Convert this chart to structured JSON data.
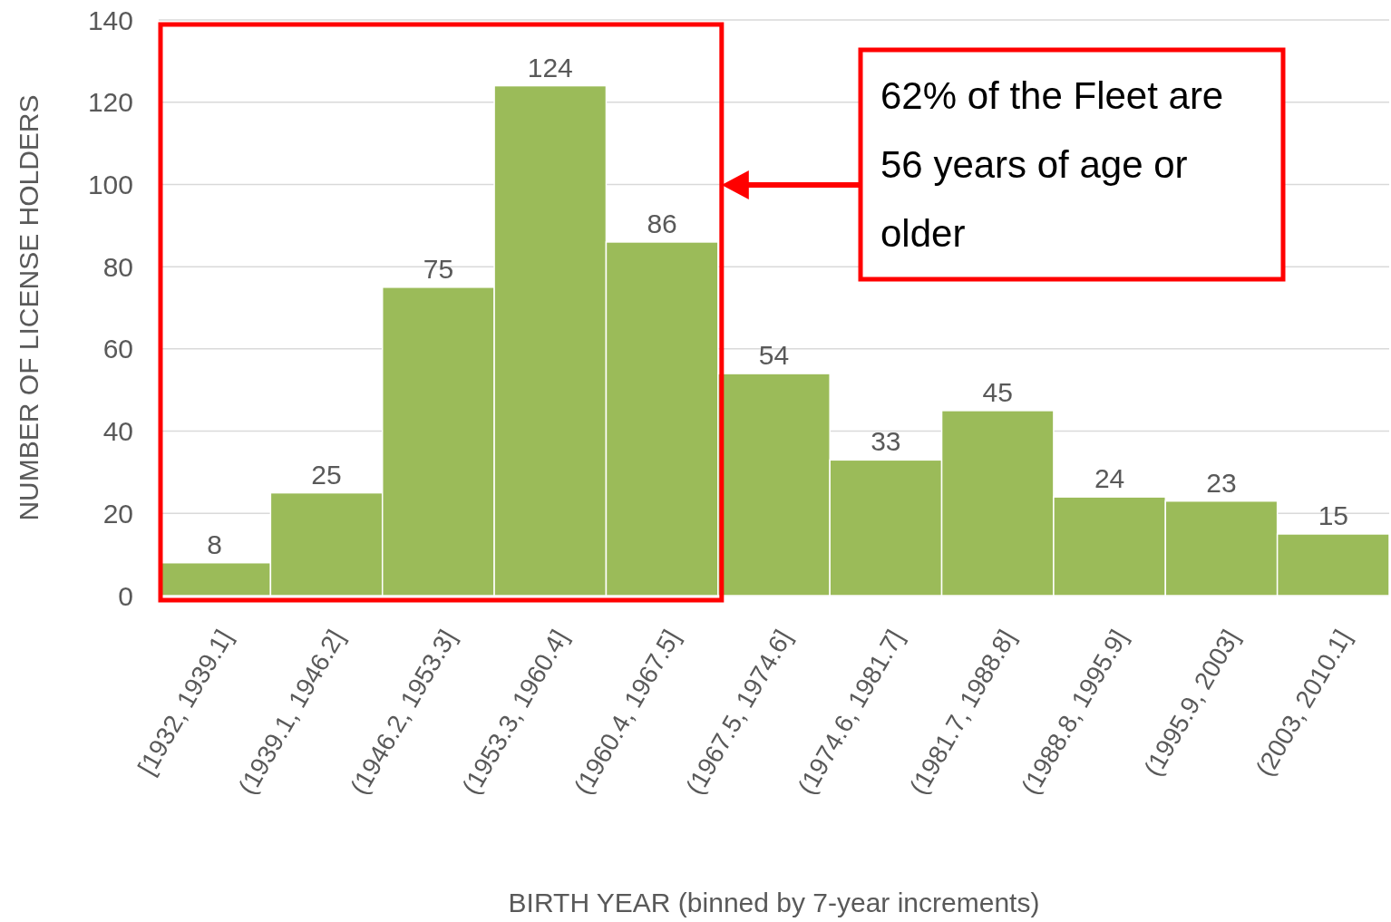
{
  "chart_data": {
    "type": "bar",
    "categories": [
      "[1932, 1939.1]",
      "(1939.1, 1946.2]",
      "(1946.2, 1953.3]",
      "(1953.3, 1960.4]",
      "(1960.4, 1967.5]",
      "(1967.5, 1974.6]",
      "(1974.6, 1981.7]",
      "(1981.7, 1988.8]",
      "(1988.8, 1995.9]",
      "(1995.9, 2003]",
      "(2003, 2010.1]"
    ],
    "values": [
      8,
      25,
      75,
      124,
      86,
      54,
      33,
      45,
      24,
      23,
      15
    ],
    "color": "#9bbb59",
    "ylim": [
      0,
      140
    ],
    "yticks": [
      0,
      20,
      40,
      60,
      80,
      100,
      120,
      140
    ],
    "grid": "y",
    "data_labels": true,
    "xlabel": "BIRTH YEAR (binned by 7-year increments)",
    "ylabel": "NUMBER OF LICENSE HOLDERS",
    "annotations": [
      "62% of the Fleet are 56 years of age or older"
    ]
  }
}
